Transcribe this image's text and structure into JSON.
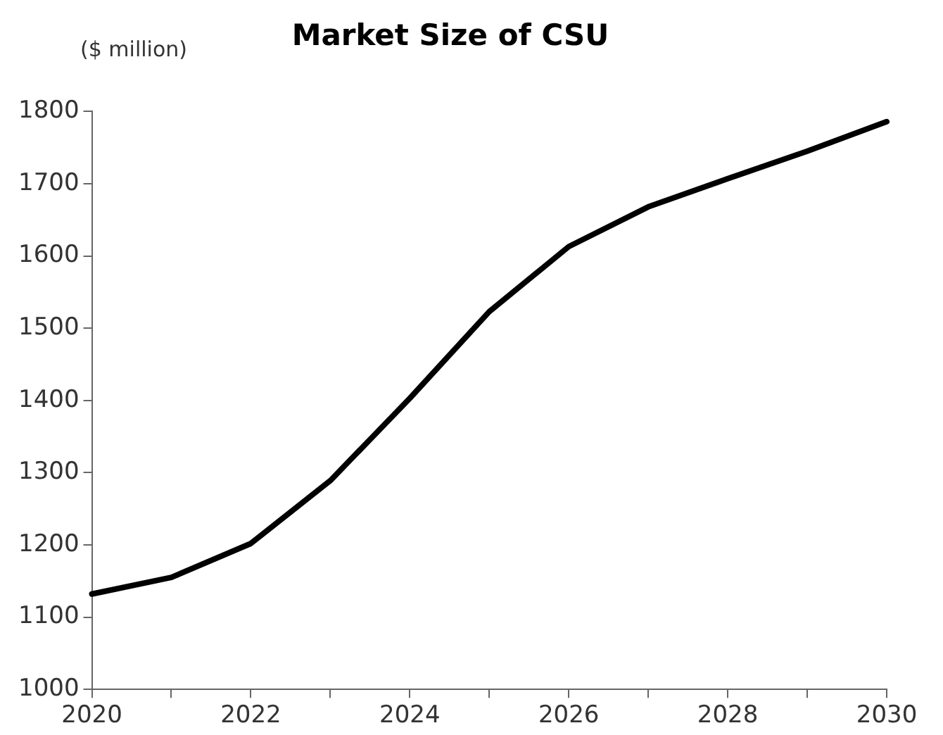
{
  "chart_data": {
    "type": "line",
    "title": "Market Size of CSU",
    "ylabel": "($ million)",
    "categories": [
      "2020",
      null,
      "2022",
      null,
      "2024",
      null,
      "2026",
      null,
      "2028",
      null,
      "2030"
    ],
    "series": [
      {
        "color": "#000000",
        "values": [
          1132,
          1155,
          1202,
          1289,
          1403,
          1523,
          1613,
          1668,
          1707,
          1745,
          1786
        ]
      }
    ],
    "ylim": [
      1000,
      1800
    ],
    "yticks": [
      1000,
      1100,
      1200,
      1300,
      1400,
      1500,
      1600,
      1700,
      1800
    ],
    "grid": false,
    "legend": false,
    "marker": "none",
    "line_style": "solid"
  }
}
